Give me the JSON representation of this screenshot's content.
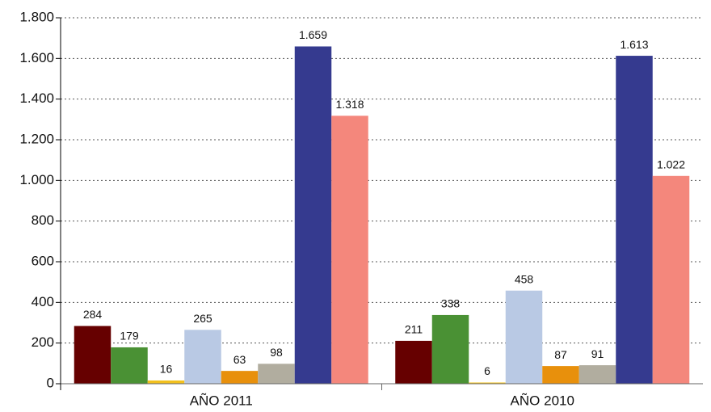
{
  "chart_data": {
    "type": "bar",
    "categories": [
      "AÑO 2011",
      "AÑO 2010"
    ],
    "series": [
      {
        "color": "#660000",
        "values": [
          284,
          211
        ]
      },
      {
        "color": "#4a9134",
        "values": [
          179,
          338
        ]
      },
      {
        "color": "#f2c01e",
        "values": [
          16,
          6
        ]
      },
      {
        "color": "#b9c9e4",
        "values": [
          265,
          458
        ]
      },
      {
        "color": "#e8900c",
        "values": [
          63,
          87
        ]
      },
      {
        "color": "#b1ad9f",
        "values": [
          98,
          91
        ]
      },
      {
        "color": "#353a8f",
        "values": [
          1659,
          1613
        ],
        "value_labels": [
          "1.659",
          "1.613"
        ]
      },
      {
        "color": "#f4877c",
        "values": [
          1318,
          1022
        ],
        "value_labels": [
          "1.318",
          "1.022"
        ]
      }
    ],
    "ylim": [
      0,
      1800
    ],
    "yticks": [
      0,
      200,
      400,
      600,
      800,
      {
        "value": 1000,
        "label": "1.000"
      },
      {
        "value": 1200,
        "label": "1.200"
      },
      {
        "value": 1400,
        "label": "1.400"
      },
      {
        "value": 1600,
        "label": "1.600"
      },
      {
        "value": 1800,
        "label": "1.800"
      }
    ],
    "grid": true
  }
}
